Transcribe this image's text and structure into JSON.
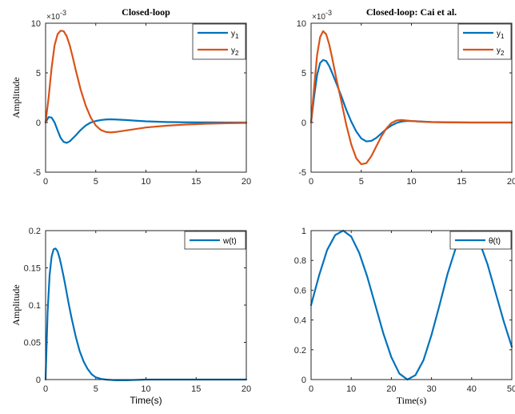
{
  "chart_data": [
    {
      "type": "line",
      "title": "Closed-loop",
      "ylabel": "Amplitude",
      "xlabel": "",
      "exponent": "10",
      "exponent_power": "-3",
      "exponent_prefix": "×",
      "xlim": [
        0,
        20
      ],
      "ylim": [
        -5,
        10
      ],
      "xticks": [
        "0",
        "5",
        "10",
        "15",
        "20"
      ],
      "yticks": [
        "-5",
        "0",
        "5",
        "10"
      ],
      "legend": "top-right",
      "series": [
        {
          "name": "y",
          "sub": "1",
          "color": "#0072BD",
          "x": [
            0,
            0.3,
            0.6,
            0.9,
            1.2,
            1.5,
            1.8,
            2.1,
            2.4,
            3,
            3.5,
            4,
            4.5,
            5,
            5.5,
            6,
            6.5,
            7,
            8,
            9,
            10,
            12,
            14,
            16,
            18,
            20
          ],
          "y": [
            0,
            0.55,
            0.5,
            0,
            -0.8,
            -1.55,
            -1.95,
            -2.05,
            -1.9,
            -1.3,
            -0.75,
            -0.3,
            0,
            0.15,
            0.25,
            0.3,
            0.32,
            0.3,
            0.25,
            0.18,
            0.12,
            0.05,
            0.02,
            0.01,
            0,
            0
          ]
        },
        {
          "name": "y",
          "sub": "2",
          "color": "#D95319",
          "x": [
            0,
            0.3,
            0.6,
            0.9,
            1.2,
            1.5,
            1.8,
            2.1,
            2.4,
            2.7,
            3,
            3.5,
            4,
            4.5,
            5,
            5.5,
            6,
            6.5,
            7,
            8,
            9,
            10,
            12,
            14,
            16,
            18,
            20
          ],
          "y": [
            0,
            2.5,
            5.5,
            7.8,
            8.9,
            9.25,
            9.2,
            8.7,
            7.8,
            6.6,
            5.3,
            3.3,
            1.7,
            0.5,
            -0.3,
            -0.75,
            -0.95,
            -1.0,
            -0.95,
            -0.8,
            -0.65,
            -0.5,
            -0.32,
            -0.2,
            -0.12,
            -0.07,
            -0.04
          ]
        }
      ]
    },
    {
      "type": "line",
      "title": "Closed-loop: Cai et al.",
      "ylabel": "",
      "xlabel": "",
      "exponent": "10",
      "exponent_power": "-3",
      "exponent_prefix": "×",
      "xlim": [
        0,
        20
      ],
      "ylim": [
        -5,
        10
      ],
      "xticks": [
        "0",
        "5",
        "10",
        "15",
        "20"
      ],
      "yticks": [
        "-5",
        "0",
        "5",
        "10"
      ],
      "legend": "top-right",
      "series": [
        {
          "name": "y",
          "sub": "1",
          "color": "#0072BD",
          "x": [
            0,
            0.3,
            0.6,
            0.9,
            1.2,
            1.5,
            1.8,
            2.1,
            2.5,
            3,
            3.5,
            4,
            4.5,
            5,
            5.5,
            6,
            6.5,
            7,
            7.5,
            8,
            8.5,
            9,
            9.5,
            10,
            11,
            12,
            14,
            16,
            18,
            20
          ],
          "y": [
            0,
            2.6,
            4.8,
            6.0,
            6.3,
            6.2,
            5.7,
            5.0,
            4.0,
            2.7,
            1.3,
            0.1,
            -0.9,
            -1.6,
            -1.9,
            -1.85,
            -1.55,
            -1.1,
            -0.65,
            -0.3,
            -0.05,
            0.1,
            0.15,
            0.15,
            0.1,
            0.05,
            0.02,
            0,
            0,
            0
          ]
        },
        {
          "name": "y",
          "sub": "2",
          "color": "#D95319",
          "x": [
            0,
            0.3,
            0.6,
            0.9,
            1.2,
            1.5,
            1.8,
            2.1,
            2.5,
            3,
            3.5,
            4,
            4.5,
            5,
            5.5,
            6,
            6.5,
            7,
            7.5,
            8,
            8.5,
            9,
            9.5,
            10,
            11,
            12,
            14,
            16,
            18,
            20
          ],
          "y": [
            0,
            3.5,
            6.8,
            8.6,
            9.2,
            8.9,
            7.9,
            6.5,
            4.5,
            2.2,
            -0.2,
            -2.2,
            -3.6,
            -4.2,
            -4.1,
            -3.4,
            -2.4,
            -1.4,
            -0.6,
            -0.05,
            0.2,
            0.25,
            0.2,
            0.15,
            0.08,
            0.04,
            0.01,
            0,
            0,
            0
          ]
        }
      ]
    },
    {
      "type": "line",
      "title": "",
      "ylabel": "Amplitude",
      "xlabel": "Time(s)",
      "xlim": [
        0,
        20
      ],
      "ylim": [
        0,
        0.2
      ],
      "xticks": [
        "0",
        "5",
        "10",
        "15",
        "20"
      ],
      "yticks": [
        "0",
        "0.05",
        "0.1",
        "0.15",
        "0.2"
      ],
      "legend": "top-right",
      "series": [
        {
          "name": "w(t)",
          "color": "#0072BD",
          "x": [
            0,
            0.2,
            0.4,
            0.6,
            0.8,
            1.0,
            1.2,
            1.4,
            1.6,
            1.8,
            2.0,
            2.3,
            2.6,
            3.0,
            3.4,
            3.8,
            4.2,
            4.6,
            5.0,
            5.5,
            6,
            7,
            8,
            10,
            12,
            15,
            20
          ],
          "y": [
            0,
            0.09,
            0.14,
            0.165,
            0.175,
            0.176,
            0.172,
            0.163,
            0.151,
            0.138,
            0.124,
            0.102,
            0.082,
            0.058,
            0.038,
            0.024,
            0.014,
            0.007,
            0.003,
            0.001,
            0,
            -0.001,
            -0.001,
            0,
            0,
            0,
            0
          ]
        }
      ]
    },
    {
      "type": "line",
      "title": "",
      "ylabel": "",
      "xlabel": "Time(s)",
      "xlim": [
        0,
        50
      ],
      "ylim": [
        0,
        1
      ],
      "xticks": [
        "0",
        "10",
        "20",
        "30",
        "40",
        "50"
      ],
      "yticks": [
        "0",
        "0.2",
        "0.4",
        "0.6",
        "0.8",
        "1"
      ],
      "legend": "top-right",
      "series": [
        {
          "name": "θ(t)",
          "color": "#0072BD",
          "x": [
            0,
            2,
            4,
            6,
            8,
            10,
            12,
            14,
            16,
            18,
            20,
            22,
            24,
            26,
            28,
            30,
            32,
            34,
            36,
            38,
            40,
            42,
            44,
            46,
            48,
            50
          ],
          "y": [
            0.5,
            0.7,
            0.87,
            0.97,
            1.0,
            0.96,
            0.85,
            0.69,
            0.5,
            0.31,
            0.15,
            0.04,
            0.0,
            0.03,
            0.13,
            0.3,
            0.5,
            0.71,
            0.88,
            0.98,
            0.99,
            0.92,
            0.77,
            0.58,
            0.39,
            0.22
          ]
        }
      ]
    }
  ]
}
